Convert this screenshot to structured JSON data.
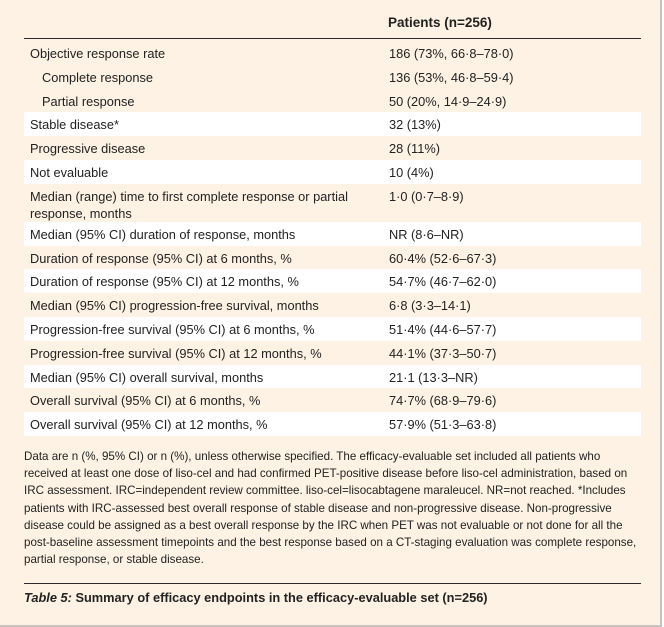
{
  "table": {
    "header": "Patients (n=256)",
    "rows": [
      {
        "label": "Objective response rate",
        "value": "186 (73%, 66·8–78·0)"
      },
      {
        "label": "Complete response",
        "value": "136 (53%, 46·8–59·4)"
      },
      {
        "label": "Partial response",
        "value": "50 (20%, 14·9–24·9)"
      },
      {
        "label": "Stable disease*",
        "value": "32 (13%)"
      },
      {
        "label": "Progressive disease",
        "value": "28 (11%)"
      },
      {
        "label": "Not evaluable",
        "value": "10 (4%)"
      },
      {
        "label": "Median (range) time to first complete response or partial response, months",
        "value": "1·0 (0·7–8·9)"
      },
      {
        "label": "Median (95% CI) duration of response, months",
        "value": "NR (8·6–NR)"
      },
      {
        "label": "Duration of response (95% CI) at 6 months, %",
        "value": "60·4% (52·6–67·3)"
      },
      {
        "label": "Duration of response (95% CI) at 12 months, %",
        "value": "54·7% (46·7–62·0)"
      },
      {
        "label": "Median (95% CI) progression-free survival, months",
        "value": "6·8 (3·3–14·1)"
      },
      {
        "label": "Progression-free survival (95% CI) at 6 months, %",
        "value": "51·4% (44·6–57·7)"
      },
      {
        "label": "Progression-free survival (95% CI) at 12 months, %",
        "value": "44·1% (37·3–50·7)"
      },
      {
        "label": "Median (95% CI) overall survival, months",
        "value": "21·1 (13·3–NR)"
      },
      {
        "label": "Overall survival (95% CI) at 6 months, %",
        "value": "74·7% (68·9–79·6)"
      },
      {
        "label": "Overall survival (95% CI) at 12 months, %",
        "value": "57·9% (51·3–63·8)"
      }
    ]
  },
  "footnote": "Data are n (%, 95% CI) or n (%), unless otherwise specified. The efficacy-evaluable set included all patients who received at least one dose of liso-cel and had confirmed PET-positive disease before liso-cel administration, based on IRC assessment. IRC=independent review committee. liso-cel=lisocabtagene maraleucel. NR=not reached. *Includes patients with IRC-assessed best overall response of stable disease and non-progressive disease. Non-progressive disease could be assigned as a best overall response by the IRC when PET was not evaluable or not done for all the post-baseline assessment timepoints and the best response based on a CT-staging evaluation was complete response, partial response, or stable disease.",
  "caption": {
    "title": "Table 5:",
    "text": " Summary of efficacy endpoints in the efficacy-evaluable set (n=256)"
  }
}
